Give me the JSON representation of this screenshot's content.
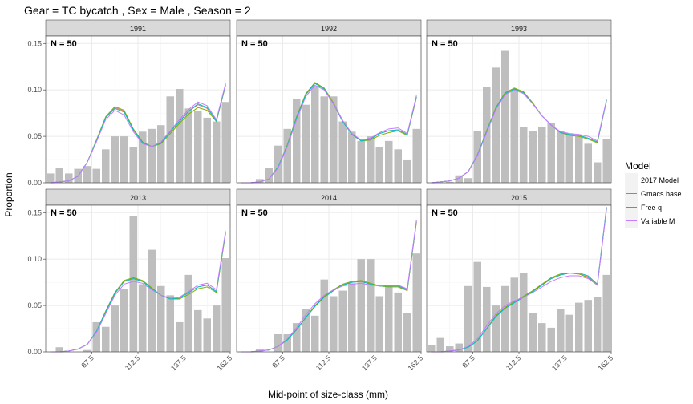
{
  "chart_data": {
    "type": "bar",
    "title": "Gear = TC bycatch , Sex = Male , Season = 2",
    "xlabel": "Mid-point of size-class (mm)",
    "ylabel": "Proportion",
    "x_ticks": [
      "87.5",
      "112.5",
      "137.5",
      "162.5"
    ],
    "y_ticks": [
      "0.00",
      "0.05",
      "0.10",
      "0.15"
    ],
    "ylim": [
      0,
      0.158
    ],
    "xlim": [
      62.5,
      162.5
    ],
    "grid": true,
    "legend": {
      "title": "Model",
      "position": "right",
      "entries": [
        "2017 Model",
        "Gmacs base",
        "Free q",
        "Variable M"
      ]
    },
    "series_colors": [
      "#F8766D",
      "#7CAE00",
      "#00BFC4",
      "#C77CFF"
    ],
    "bar_color": "#BEBEBE",
    "x": [
      65,
      70,
      75,
      80,
      85,
      90,
      95,
      100,
      105,
      110,
      115,
      120,
      125,
      130,
      135,
      140,
      145,
      150,
      155,
      160
    ],
    "panels": [
      {
        "strip": "1991",
        "annotation": "N = 50",
        "observed": [
          0.01,
          0.016,
          0.01,
          0.015,
          0.018,
          0.015,
          0.036,
          0.05,
          0.05,
          0.038,
          0.055,
          0.058,
          0.062,
          0.093,
          0.101,
          0.08,
          0.077,
          0.07,
          0.066,
          0.087
        ],
        "fits": [
          [
            0.0,
            0.001,
            0.002,
            0.007,
            0.022,
            0.045,
            0.07,
            0.081,
            0.077,
            0.057,
            0.043,
            0.039,
            0.043,
            0.055,
            0.066,
            0.077,
            0.084,
            0.08,
            0.067,
            0.105
          ],
          [
            0.0,
            0.001,
            0.002,
            0.007,
            0.022,
            0.046,
            0.071,
            0.082,
            0.078,
            0.058,
            0.044,
            0.039,
            0.042,
            0.053,
            0.064,
            0.074,
            0.081,
            0.078,
            0.066,
            0.105
          ],
          [
            0.0,
            0.001,
            0.002,
            0.007,
            0.022,
            0.045,
            0.07,
            0.08,
            0.076,
            0.057,
            0.043,
            0.039,
            0.043,
            0.055,
            0.066,
            0.077,
            0.085,
            0.081,
            0.067,
            0.106
          ],
          [
            0.0,
            0.001,
            0.002,
            0.007,
            0.022,
            0.044,
            0.068,
            0.078,
            0.073,
            0.055,
            0.042,
            0.039,
            0.044,
            0.056,
            0.068,
            0.079,
            0.087,
            0.083,
            0.068,
            0.107
          ]
        ]
      },
      {
        "strip": "1992",
        "annotation": "N = 50",
        "observed": [
          0.0,
          0.0,
          0.004,
          0.016,
          0.04,
          0.058,
          0.09,
          0.084,
          0.104,
          0.093,
          0.093,
          0.066,
          0.055,
          0.045,
          0.05,
          0.038,
          0.045,
          0.036,
          0.025,
          0.058
        ],
        "fits": [
          [
            0.0,
            0.0,
            0.001,
            0.004,
            0.017,
            0.04,
            0.07,
            0.095,
            0.107,
            0.101,
            0.085,
            0.066,
            0.052,
            0.045,
            0.047,
            0.053,
            0.056,
            0.057,
            0.052,
            0.092
          ],
          [
            0.0,
            0.0,
            0.001,
            0.004,
            0.017,
            0.041,
            0.071,
            0.096,
            0.108,
            0.102,
            0.086,
            0.067,
            0.053,
            0.045,
            0.046,
            0.051,
            0.054,
            0.056,
            0.051,
            0.092
          ],
          [
            0.0,
            0.0,
            0.001,
            0.004,
            0.017,
            0.04,
            0.07,
            0.095,
            0.107,
            0.101,
            0.085,
            0.066,
            0.052,
            0.045,
            0.047,
            0.053,
            0.056,
            0.057,
            0.052,
            0.093
          ],
          [
            0.0,
            0.0,
            0.001,
            0.004,
            0.016,
            0.039,
            0.068,
            0.093,
            0.105,
            0.1,
            0.085,
            0.067,
            0.053,
            0.046,
            0.048,
            0.054,
            0.058,
            0.059,
            0.053,
            0.094
          ]
        ]
      },
      {
        "strip": "1993",
        "annotation": "N = 50",
        "observed": [
          0.0,
          0.0,
          0.001,
          0.008,
          0.005,
          0.056,
          0.103,
          0.124,
          0.142,
          0.1,
          0.06,
          0.056,
          0.06,
          0.064,
          0.056,
          0.052,
          0.05,
          0.042,
          0.022,
          0.047
        ],
        "fits": [
          [
            0.0,
            0.001,
            0.002,
            0.005,
            0.012,
            0.03,
            0.055,
            0.08,
            0.096,
            0.101,
            0.097,
            0.085,
            0.072,
            0.062,
            0.054,
            0.052,
            0.051,
            0.048,
            0.044,
            0.089
          ],
          [
            0.0,
            0.001,
            0.002,
            0.005,
            0.012,
            0.03,
            0.056,
            0.081,
            0.097,
            0.102,
            0.098,
            0.086,
            0.072,
            0.062,
            0.054,
            0.051,
            0.05,
            0.047,
            0.043,
            0.089
          ],
          [
            0.0,
            0.001,
            0.002,
            0.005,
            0.012,
            0.03,
            0.055,
            0.08,
            0.096,
            0.101,
            0.097,
            0.085,
            0.072,
            0.062,
            0.054,
            0.052,
            0.051,
            0.048,
            0.044,
            0.089
          ],
          [
            0.0,
            0.001,
            0.002,
            0.005,
            0.012,
            0.029,
            0.054,
            0.079,
            0.095,
            0.1,
            0.096,
            0.085,
            0.072,
            0.062,
            0.055,
            0.053,
            0.052,
            0.05,
            0.045,
            0.09
          ]
        ]
      },
      {
        "strip": "2013",
        "annotation": "N = 50",
        "observed": [
          0.0,
          0.005,
          0.0,
          0.0,
          0.002,
          0.032,
          0.027,
          0.05,
          0.068,
          0.146,
          0.073,
          0.11,
          0.071,
          0.061,
          0.032,
          0.083,
          0.045,
          0.036,
          0.05,
          0.101
        ],
        "fits": [
          [
            0.0,
            0.0,
            0.001,
            0.003,
            0.008,
            0.022,
            0.043,
            0.063,
            0.076,
            0.079,
            0.076,
            0.068,
            0.061,
            0.057,
            0.058,
            0.064,
            0.07,
            0.072,
            0.065,
            0.128
          ],
          [
            0.0,
            0.0,
            0.001,
            0.003,
            0.008,
            0.022,
            0.044,
            0.064,
            0.077,
            0.08,
            0.077,
            0.069,
            0.061,
            0.057,
            0.057,
            0.062,
            0.068,
            0.07,
            0.064,
            0.128
          ],
          [
            0.0,
            0.0,
            0.001,
            0.003,
            0.008,
            0.022,
            0.043,
            0.063,
            0.076,
            0.079,
            0.076,
            0.068,
            0.061,
            0.057,
            0.058,
            0.064,
            0.07,
            0.072,
            0.065,
            0.129
          ],
          [
            0.0,
            0.0,
            0.001,
            0.003,
            0.008,
            0.021,
            0.041,
            0.061,
            0.073,
            0.076,
            0.074,
            0.067,
            0.061,
            0.058,
            0.059,
            0.065,
            0.072,
            0.074,
            0.067,
            0.13
          ]
        ]
      },
      {
        "strip": "2014",
        "annotation": "N = 50",
        "observed": [
          0.0,
          0.0,
          0.003,
          0.0,
          0.019,
          0.019,
          0.031,
          0.046,
          0.039,
          0.078,
          0.06,
          0.066,
          0.074,
          0.1,
          0.1,
          0.06,
          0.071,
          0.064,
          0.042,
          0.106
        ],
        "fits": [
          [
            0.0,
            0.0,
            0.001,
            0.002,
            0.006,
            0.013,
            0.024,
            0.037,
            0.049,
            0.059,
            0.066,
            0.072,
            0.075,
            0.076,
            0.073,
            0.071,
            0.071,
            0.071,
            0.067,
            0.14
          ],
          [
            0.0,
            0.0,
            0.001,
            0.002,
            0.006,
            0.013,
            0.024,
            0.037,
            0.05,
            0.06,
            0.067,
            0.073,
            0.076,
            0.077,
            0.074,
            0.071,
            0.07,
            0.07,
            0.066,
            0.14
          ],
          [
            0.0,
            0.0,
            0.001,
            0.002,
            0.006,
            0.013,
            0.024,
            0.037,
            0.049,
            0.059,
            0.066,
            0.072,
            0.075,
            0.076,
            0.073,
            0.071,
            0.071,
            0.071,
            0.067,
            0.141
          ],
          [
            0.0,
            0.0,
            0.001,
            0.002,
            0.006,
            0.014,
            0.026,
            0.04,
            0.052,
            0.061,
            0.067,
            0.071,
            0.073,
            0.074,
            0.072,
            0.071,
            0.072,
            0.072,
            0.068,
            0.142
          ]
        ]
      },
      {
        "strip": "2015",
        "annotation": "N = 50",
        "observed": [
          0.007,
          0.015,
          0.006,
          0.009,
          0.071,
          0.097,
          0.07,
          0.05,
          0.071,
          0.08,
          0.085,
          0.042,
          0.031,
          0.026,
          0.046,
          0.04,
          0.053,
          0.056,
          0.059,
          0.083
        ],
        "fits": [
          [
            0.0,
            0.0,
            0.001,
            0.002,
            0.005,
            0.012,
            0.025,
            0.038,
            0.047,
            0.053,
            0.059,
            0.065,
            0.072,
            0.079,
            0.083,
            0.085,
            0.084,
            0.081,
            0.073,
            0.155
          ],
          [
            0.0,
            0.0,
            0.001,
            0.002,
            0.005,
            0.012,
            0.025,
            0.039,
            0.048,
            0.054,
            0.06,
            0.066,
            0.073,
            0.08,
            0.084,
            0.085,
            0.084,
            0.08,
            0.072,
            0.155
          ],
          [
            0.0,
            0.0,
            0.001,
            0.002,
            0.005,
            0.012,
            0.025,
            0.038,
            0.047,
            0.053,
            0.059,
            0.065,
            0.072,
            0.079,
            0.083,
            0.085,
            0.085,
            0.082,
            0.073,
            0.156
          ],
          [
            0.0,
            0.0,
            0.001,
            0.002,
            0.006,
            0.014,
            0.028,
            0.041,
            0.05,
            0.055,
            0.059,
            0.064,
            0.07,
            0.076,
            0.08,
            0.082,
            0.082,
            0.079,
            0.072,
            0.154
          ]
        ]
      }
    ]
  }
}
